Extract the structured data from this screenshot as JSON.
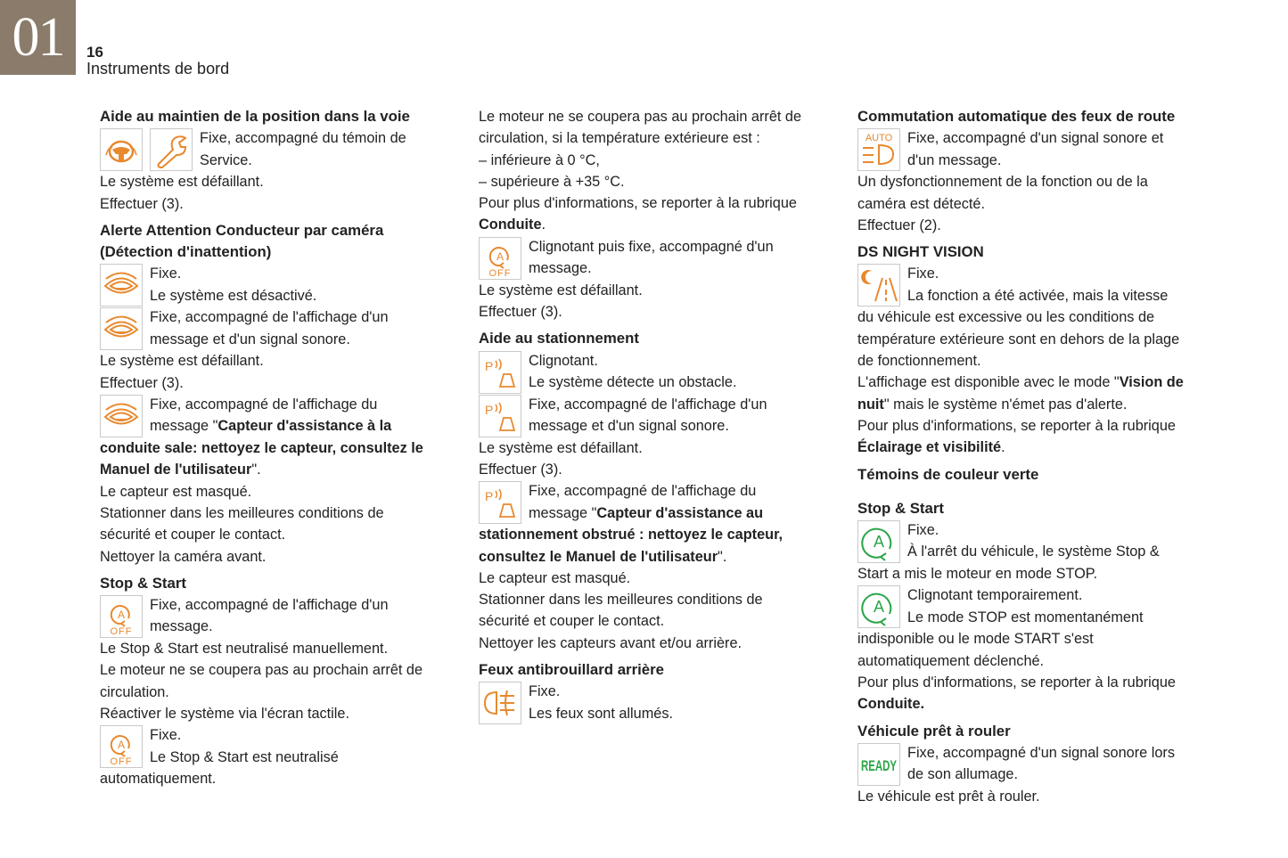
{
  "header": {
    "chapter": "01",
    "page_number": "16",
    "title": "Instruments de bord"
  },
  "colors": {
    "chapter_bg": "#8b7b6a",
    "orange": "#e8892f",
    "green": "#2aa548"
  },
  "columns": [
    {
      "items": [
        {
          "type": "h",
          "first": true,
          "text": "Aide au maintien de la position dans la voie"
        },
        {
          "type": "icon",
          "icons": [
            "lane-keeping",
            "service-wrench"
          ],
          "lines": [
            "Fixe, accompagné du témoin de",
            "Service."
          ]
        },
        {
          "type": "p",
          "text": "Le système est défaillant."
        },
        {
          "type": "p",
          "text": "Effectuer (3)."
        },
        {
          "type": "h",
          "text": "Alerte Attention Conducteur par caméra"
        },
        {
          "type": "h",
          "cont": true,
          "text": "(Détection d'inattention)"
        },
        {
          "type": "icon",
          "icons": [
            "driver-attention-eye"
          ],
          "lines": [
            "Fixe.",
            "Le système est désactivé."
          ]
        },
        {
          "type": "icon",
          "icons": [
            "driver-attention-eye"
          ],
          "lines": [
            "Fixe, accompagné de l'affichage d'un",
            "message et d'un signal sonore."
          ]
        },
        {
          "type": "p",
          "text": "Le système est défaillant."
        },
        {
          "type": "p",
          "text": "Effectuer (3)."
        },
        {
          "type": "icon",
          "icons": [
            "driver-attention-eye"
          ],
          "lines": [
            "Fixe, accompagné de l'affichage du",
            [
              [
                "message \"",
                0
              ],
              [
                "Capteur d'assistance à la",
                1
              ]
            ]
          ]
        },
        {
          "type": "p",
          "text": [
            [
              "conduite sale: nettoyez le capteur, consultez le",
              1
            ]
          ]
        },
        {
          "type": "p",
          "text": [
            [
              "Manuel de l'utilisateur",
              1
            ],
            [
              "\".",
              0
            ]
          ]
        },
        {
          "type": "p",
          "text": "Le capteur est masqué."
        },
        {
          "type": "p",
          "text": "Stationner dans les meilleures conditions de"
        },
        {
          "type": "p",
          "text": "sécurité et couper le contact."
        },
        {
          "type": "p",
          "text": "Nettoyer la caméra avant."
        },
        {
          "type": "h",
          "text": "Stop & Start"
        },
        {
          "type": "icon",
          "icons": [
            "stop-start-off"
          ],
          "lines": [
            "Fixe, accompagné de l'affichage d'un",
            "message."
          ]
        },
        {
          "type": "p",
          "text": "Le Stop & Start est neutralisé manuellement."
        },
        {
          "type": "p",
          "text": "Le moteur ne se coupera pas au prochain arrêt de"
        },
        {
          "type": "p",
          "text": "circulation."
        },
        {
          "type": "p",
          "text": "Réactiver le système via l'écran tactile."
        },
        {
          "type": "icon",
          "icons": [
            "stop-start-off"
          ],
          "lines": [
            "Fixe.",
            "Le Stop & Start est neutralisé"
          ]
        },
        {
          "type": "p",
          "text": "automatiquement."
        }
      ]
    },
    {
      "items": [
        {
          "type": "p",
          "text": "Le moteur ne se coupera pas au prochain arrêt de"
        },
        {
          "type": "p",
          "text": "circulation, si la température extérieure est :"
        },
        {
          "type": "p",
          "text": "–  inférieure à 0 °C,"
        },
        {
          "type": "p",
          "text": "–  supérieure à +35 °C."
        },
        {
          "type": "p",
          "text": "Pour plus d'informations, se reporter à la rubrique"
        },
        {
          "type": "p",
          "text": [
            [
              "Conduite",
              1
            ],
            [
              ".",
              0
            ]
          ]
        },
        {
          "type": "icon",
          "icons": [
            "stop-start-off"
          ],
          "lines": [
            "Clignotant puis fixe, accompagné d'un",
            "message."
          ]
        },
        {
          "type": "p",
          "text": "Le système est défaillant."
        },
        {
          "type": "p",
          "text": "Effectuer (3)."
        },
        {
          "type": "h",
          "text": "Aide au stationnement"
        },
        {
          "type": "icon",
          "icons": [
            "parking-sensor"
          ],
          "lines": [
            "Clignotant.",
            "Le système détecte un obstacle."
          ]
        },
        {
          "type": "icon",
          "icons": [
            "parking-sensor"
          ],
          "lines": [
            "Fixe, accompagné de l'affichage d'un",
            "message et d'un signal sonore."
          ]
        },
        {
          "type": "p",
          "text": "Le système est défaillant."
        },
        {
          "type": "p",
          "text": "Effectuer (3)."
        },
        {
          "type": "icon",
          "icons": [
            "parking-sensor"
          ],
          "lines": [
            "Fixe, accompagné de l'affichage du",
            [
              [
                "message \"",
                0
              ],
              [
                "Capteur d'assistance au",
                1
              ]
            ]
          ]
        },
        {
          "type": "p",
          "text": [
            [
              "stationnement obstrué : nettoyez le capteur,",
              1
            ]
          ]
        },
        {
          "type": "p",
          "text": [
            [
              "consultez le Manuel de l'utilisateur",
              1
            ],
            [
              "\".",
              0
            ]
          ]
        },
        {
          "type": "p",
          "text": "Le capteur est masqué."
        },
        {
          "type": "p",
          "text": "Stationner dans les meilleures conditions de"
        },
        {
          "type": "p",
          "text": "sécurité et couper le contact."
        },
        {
          "type": "p",
          "text": "Nettoyer les capteurs avant et/ou arrière."
        },
        {
          "type": "h",
          "text": "Feux antibrouillard arrière"
        },
        {
          "type": "icon",
          "icons": [
            "rear-fog-light"
          ],
          "lines": [
            "Fixe.",
            "Les feux sont allumés."
          ]
        }
      ]
    },
    {
      "items": [
        {
          "type": "h",
          "first": true,
          "text": "Commutation automatique des feux de route"
        },
        {
          "type": "icon",
          "icons": [
            "auto-high-beam"
          ],
          "lines": [
            "Fixe, accompagné d'un signal sonore et",
            "d'un message."
          ]
        },
        {
          "type": "p",
          "text": "Un dysfonctionnement de la fonction ou de la"
        },
        {
          "type": "p",
          "text": "caméra est détecté."
        },
        {
          "type": "p",
          "text": "Effectuer (2)."
        },
        {
          "type": "h",
          "text": "DS NIGHT VISION"
        },
        {
          "type": "icon",
          "icons": [
            "night-vision"
          ],
          "lines": [
            "Fixe.",
            "La fonction a été activée, mais la vitesse"
          ]
        },
        {
          "type": "p",
          "text": "du véhicule est excessive ou les conditions de"
        },
        {
          "type": "p",
          "text": "température extérieure sont en dehors de la plage"
        },
        {
          "type": "p",
          "text": "de fonctionnement."
        },
        {
          "type": "p",
          "text": [
            [
              "L'affichage est disponible avec le mode \"",
              0
            ],
            [
              "Vision de",
              1
            ]
          ]
        },
        {
          "type": "p",
          "text": [
            [
              "nuit",
              1
            ],
            [
              "\" mais le système n'émet pas d'alerte.",
              0
            ]
          ]
        },
        {
          "type": "p",
          "text": "Pour plus d'informations, se reporter à la rubrique"
        },
        {
          "type": "p",
          "text": [
            [
              "Éclairage et visibilité",
              1
            ],
            [
              ".",
              0
            ]
          ]
        },
        {
          "type": "h",
          "text": "Témoins de couleur verte"
        },
        {
          "type": "h",
          "gap": true,
          "text": "Stop & Start"
        },
        {
          "type": "icon",
          "icons": [
            "stop-start-active"
          ],
          "lines": [
            "Fixe.",
            "À l'arrêt du véhicule, le système Stop &"
          ]
        },
        {
          "type": "p",
          "text": "Start a mis le moteur en mode STOP."
        },
        {
          "type": "icon",
          "icons": [
            "stop-start-active"
          ],
          "lines": [
            "Clignotant temporairement.",
            "Le mode STOP est momentanément"
          ]
        },
        {
          "type": "p",
          "text": "indisponible ou le mode START s'est"
        },
        {
          "type": "p",
          "text": "automatiquement déclenché."
        },
        {
          "type": "p",
          "text": "Pour plus d'informations, se reporter à la rubrique"
        },
        {
          "type": "p",
          "text": [
            [
              "Conduite.",
              1
            ]
          ]
        },
        {
          "type": "h",
          "text": "Véhicule prêt à rouler"
        },
        {
          "type": "icon",
          "icons": [
            "ready"
          ],
          "lines": [
            "Fixe, accompagné d'un signal sonore lors",
            "de son allumage."
          ]
        },
        {
          "type": "p",
          "text": "Le véhicule est prêt à rouler."
        }
      ]
    }
  ]
}
